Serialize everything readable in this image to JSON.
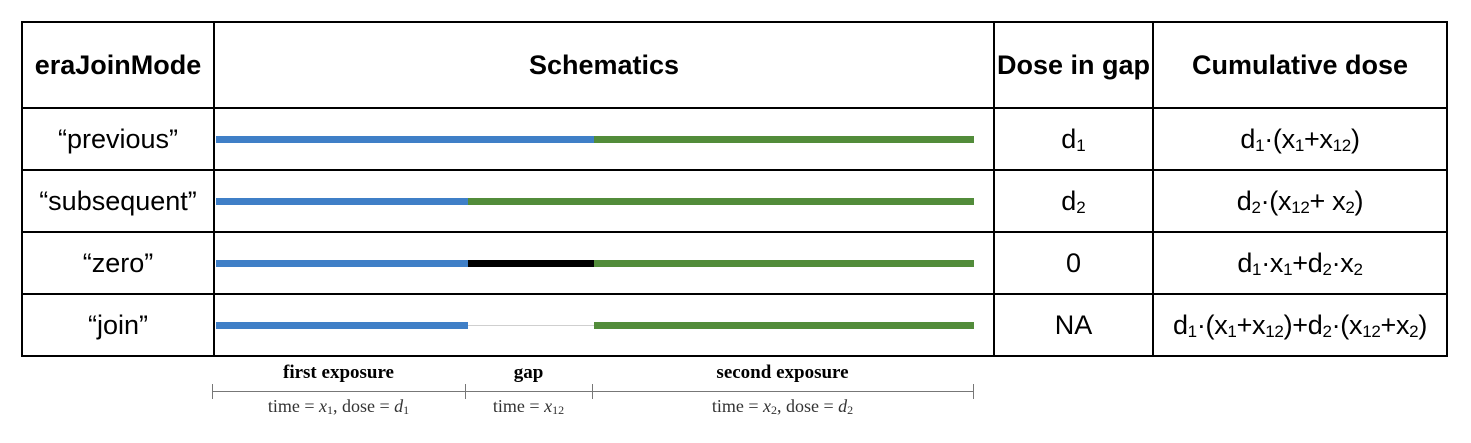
{
  "header": {
    "col1": "eraJoinMode",
    "col2": "Schematics",
    "col3": "Dose in gap",
    "col4": "Cumulative dose"
  },
  "rows": [
    {
      "mode": "“previous”",
      "dose_main": "d",
      "dose_sub": "1",
      "segments": [
        "blue",
        "blue",
        "green"
      ]
    },
    {
      "mode": "“subsequent”",
      "dose_main": "d",
      "dose_sub": "2",
      "segments": [
        "blue",
        "green",
        "green"
      ]
    },
    {
      "mode": "“zero”",
      "dose_main": "0",
      "dose_sub": "",
      "segments": [
        "blue",
        "black",
        "green"
      ]
    },
    {
      "mode": "“join”",
      "dose_main": "NA",
      "dose_sub": "",
      "segments": [
        "blue",
        "none",
        "green"
      ]
    }
  ],
  "cumulative": {
    "r0": {
      "a": "d",
      "b": "1",
      "c": "·(x",
      "d": "1",
      "e": "+x",
      "f": "12",
      "g": ")"
    },
    "r1": {
      "a": "d",
      "b": "2",
      "c": "·(x",
      "d": "12",
      "e": "+ x",
      "f": "2",
      "g": ")"
    },
    "r2": {
      "a": "d",
      "b": "1",
      "c": "·x",
      "d": "1",
      "e": "+d",
      "f": "2",
      "g": "·x",
      "h": "2"
    },
    "r3": {
      "a": "d",
      "b": "1",
      "c": "·(x",
      "d": "1",
      "e": "+x",
      "f": "12",
      "g": ")+d",
      "h": "2",
      "i": "·(x",
      "j": "12",
      "k": "+x",
      "l": "2",
      "m": ")"
    }
  },
  "colors": {
    "blue": "#3f7fc7",
    "green": "#528c3a",
    "black": "#000000"
  },
  "legend": {
    "first": {
      "title": "first exposure",
      "t1": "time = ",
      "t2": "x",
      "t3": "1",
      "t4": ", dose = ",
      "t5": "d",
      "t6": "1"
    },
    "gap": {
      "title": "gap",
      "t1": "time = ",
      "t2": "x",
      "t3": "12"
    },
    "second": {
      "title": "second exposure",
      "t1": "time = ",
      "t2": "x",
      "t3": "2",
      "t4": ", dose = ",
      "t5": "d",
      "t6": "2"
    }
  }
}
